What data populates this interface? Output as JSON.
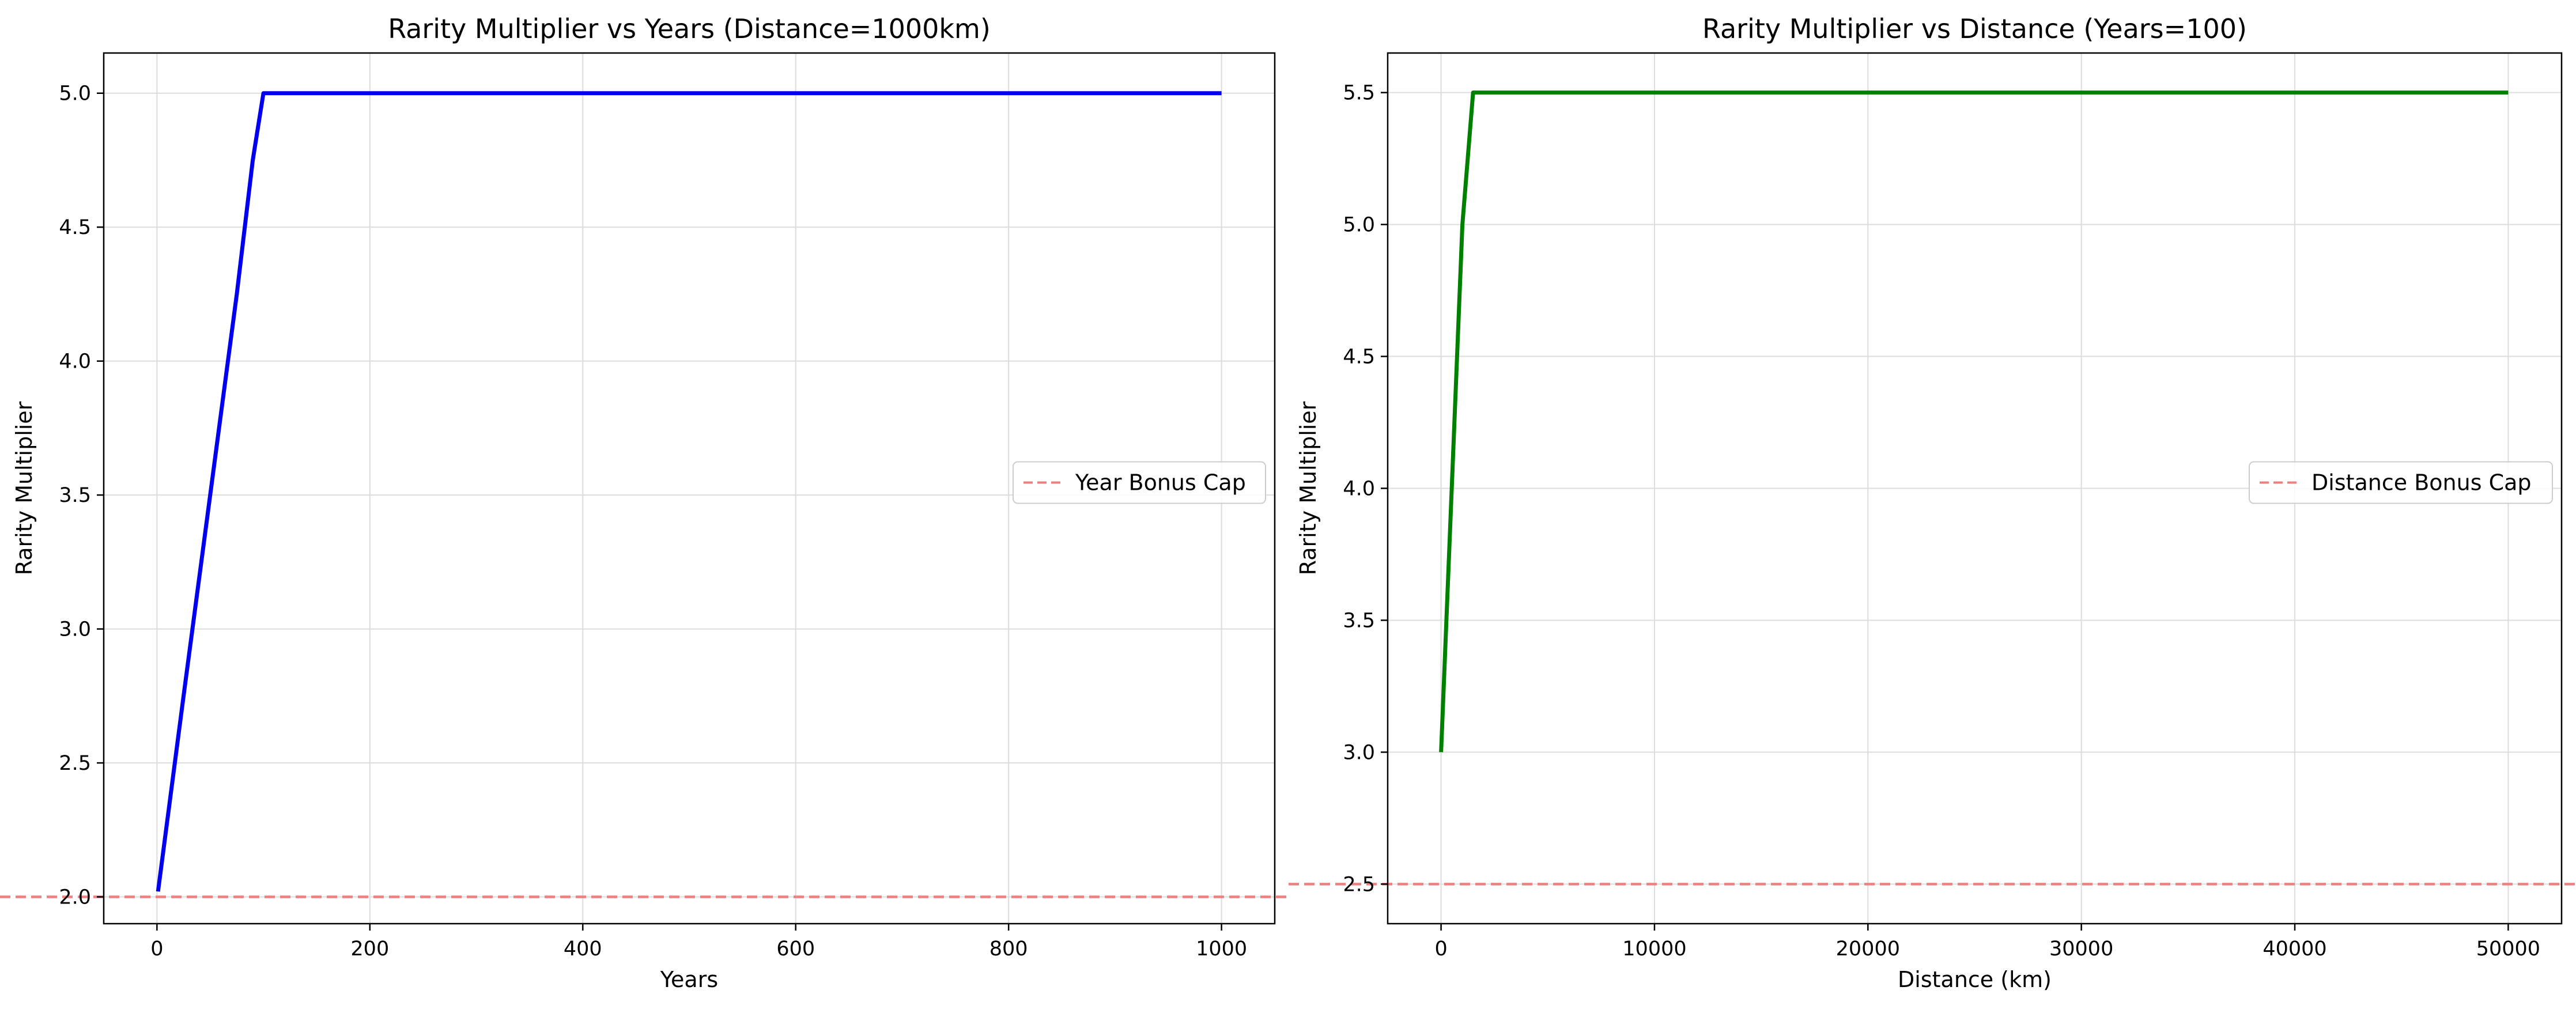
{
  "chart_data": [
    {
      "type": "line",
      "title": "Rarity Multiplier vs Years (Distance=1000km)",
      "xlabel": "Years",
      "ylabel": "Rarity Multiplier",
      "xlim": [
        -50,
        1050
      ],
      "ylim": [
        1.9,
        5.15
      ],
      "xticks": [
        0,
        200,
        400,
        600,
        800,
        1000
      ],
      "yticks": [
        2.0,
        2.5,
        3.0,
        3.5,
        4.0,
        4.5,
        5.0
      ],
      "xtick_labels": [
        "0",
        "200",
        "400",
        "600",
        "800",
        "1000"
      ],
      "ytick_labels": [
        "2.0",
        "2.5",
        "3.0",
        "3.5",
        "4.0",
        "4.5",
        "5.0"
      ],
      "grid": true,
      "legend_position": "center-right",
      "series": [
        {
          "name": "",
          "color": "#0000ee",
          "x": [
            1,
            25,
            50,
            75,
            90,
            100,
            200,
            400,
            600,
            800,
            1000
          ],
          "y": [
            2.02,
            2.75,
            3.5,
            4.25,
            4.75,
            5.0,
            5.0,
            5.0,
            5.0,
            5.0,
            5.0
          ]
        }
      ],
      "reference_lines": [
        {
          "name": "Year Bonus Cap",
          "y": 2.0,
          "color": "#f08080",
          "style": "dashed"
        }
      ]
    },
    {
      "type": "line",
      "title": "Rarity Multiplier vs Distance (Years=100)",
      "xlabel": "Distance (km)",
      "ylabel": "Rarity Multiplier",
      "xlim": [
        -2500,
        52500
      ],
      "ylim": [
        2.35,
        5.65
      ],
      "xticks": [
        0,
        10000,
        20000,
        30000,
        40000,
        50000
      ],
      "yticks": [
        2.5,
        3.0,
        3.5,
        4.0,
        4.5,
        5.0,
        5.5
      ],
      "xtick_labels": [
        "0",
        "10000",
        "20000",
        "30000",
        "40000",
        "50000"
      ],
      "ytick_labels": [
        "2.5",
        "3.0",
        "3.5",
        "4.0",
        "4.5",
        "5.0",
        "5.5"
      ],
      "grid": true,
      "legend_position": "center-right",
      "series": [
        {
          "name": "",
          "color": "#008000",
          "x": [
            1,
            1000,
            1500,
            10000,
            20000,
            30000,
            40000,
            50000
          ],
          "y": [
            3.0,
            5.0,
            5.5,
            5.5,
            5.5,
            5.5,
            5.5,
            5.5
          ]
        }
      ],
      "reference_lines": [
        {
          "name": "Distance Bonus Cap",
          "y": 2.5,
          "color": "#f08080",
          "style": "dashed"
        }
      ]
    }
  ]
}
